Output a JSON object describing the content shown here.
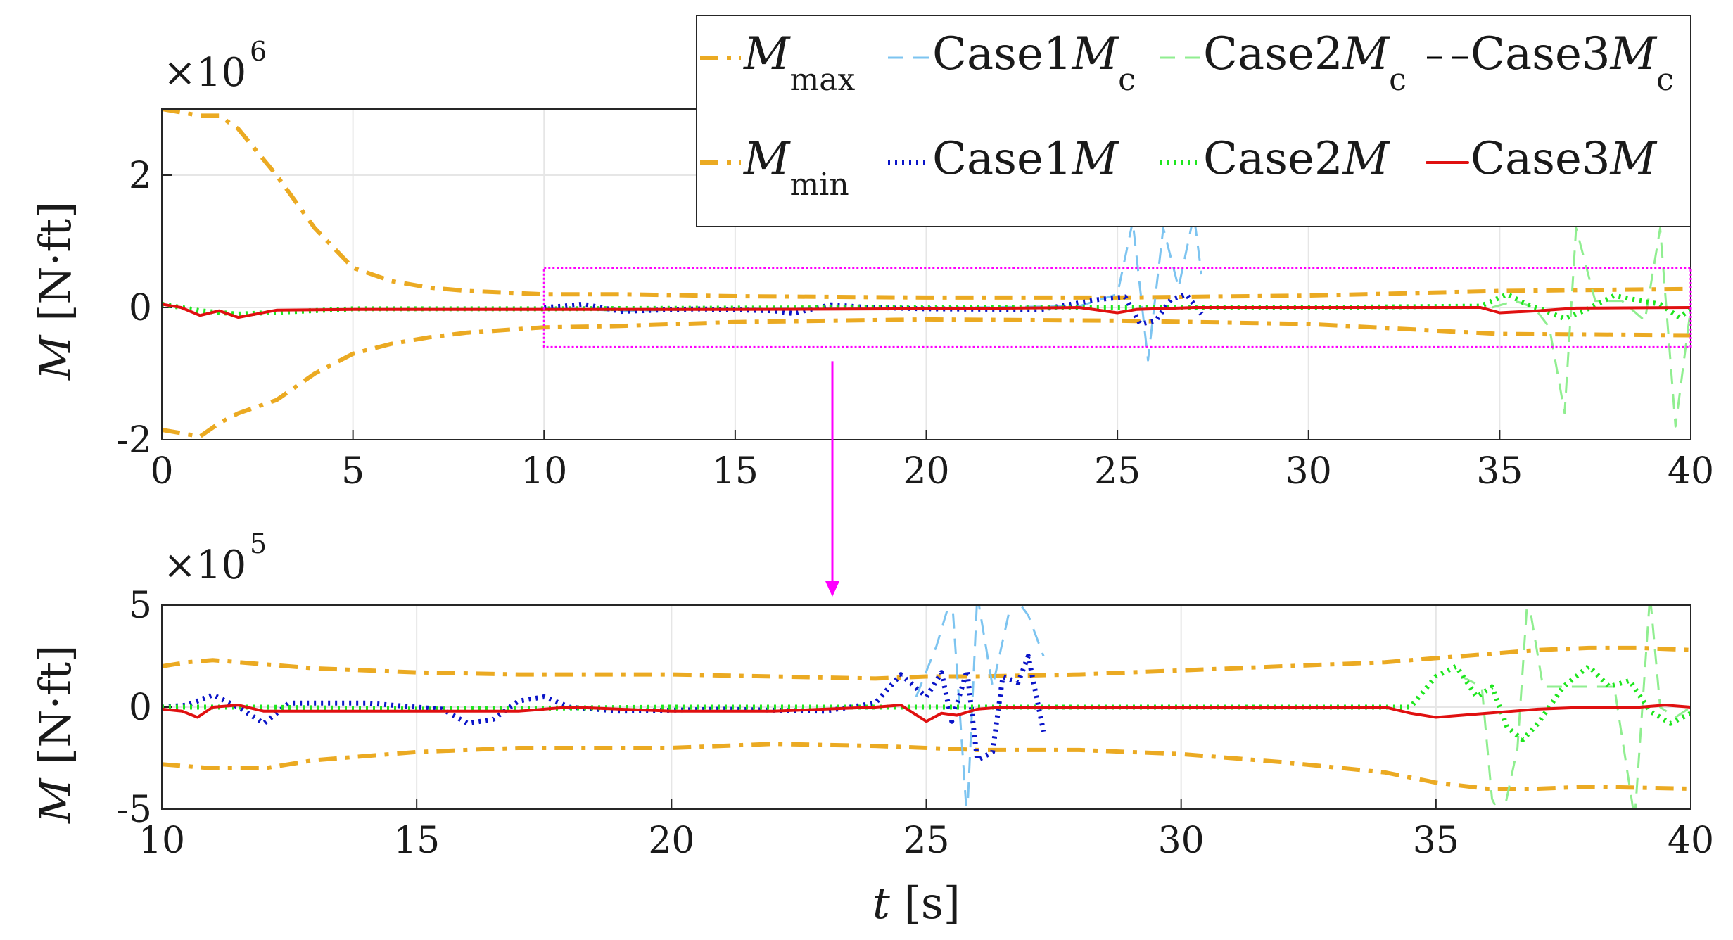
{
  "colors": {
    "mmax": "#EBAA22",
    "mmin": "#EBAA22",
    "case1_mc": "#7DC4F0",
    "case2_mc": "#90EE90",
    "case3_mc": "#000000",
    "case1_m": "#0A14C8",
    "case2_m": "#1EE61E",
    "case3_m": "#E01010",
    "zoom_box": "#FF00FF",
    "grid": "#E6E6E6"
  },
  "legend": {
    "mmax": {
      "sym": "M",
      "sub": "max"
    },
    "case1_mc": {
      "pre": "Case1",
      "sym": "M",
      "sub": "c"
    },
    "case2_mc": {
      "pre": "Case2",
      "sym": "M",
      "sub": "c"
    },
    "case3_mc": {
      "pre": "Case3",
      "sym": "M",
      "sub": "c"
    },
    "mmin": {
      "sym": "M",
      "sub": "min"
    },
    "case1_m": {
      "pre": "Case1",
      "sym": "M"
    },
    "case2_m": {
      "pre": "Case2",
      "sym": "M"
    },
    "case3_m": {
      "pre": "Case3",
      "sym": "M"
    }
  },
  "xlabel": {
    "sym": "t",
    "unit": " [s]"
  },
  "chart_data": [
    {
      "type": "line",
      "title": "",
      "ylabel": {
        "sym": "M",
        "unit": " [N·ft]"
      },
      "exponent": {
        "base": "×10",
        "power": "6"
      },
      "xlim": [
        0,
        40
      ],
      "ylim": [
        -2,
        3
      ],
      "xticks": [
        "0",
        "5",
        "10",
        "15",
        "20",
        "25",
        "30",
        "35",
        "40"
      ],
      "yticks": [
        "-2",
        "0",
        "2"
      ],
      "ytick_values": [
        -2,
        0,
        2
      ],
      "zoom_region": {
        "x": [
          10,
          40
        ],
        "y": [
          -0.6,
          0.6
        ]
      },
      "series": [
        {
          "name": "Mmax",
          "key": "mmax",
          "style": "dashdot",
          "x": [
            0,
            0.5,
            1,
            1.5,
            2,
            3,
            4,
            5,
            6,
            7,
            8,
            10,
            12,
            15,
            20,
            25,
            30,
            35,
            40
          ],
          "y": [
            3.0,
            2.95,
            2.9,
            2.9,
            2.7,
            2.0,
            1.2,
            0.6,
            0.4,
            0.3,
            0.25,
            0.2,
            0.2,
            0.17,
            0.15,
            0.15,
            0.18,
            0.25,
            0.28
          ]
        },
        {
          "name": "Mmin",
          "key": "mmin",
          "style": "dashdot",
          "x": [
            0,
            0.5,
            1,
            1.5,
            2,
            3,
            4,
            5,
            6,
            7,
            8,
            10,
            12,
            15,
            20,
            25,
            30,
            35,
            40
          ],
          "y": [
            -1.85,
            -1.9,
            -1.95,
            -1.75,
            -1.6,
            -1.4,
            -1.0,
            -0.7,
            -0.55,
            -0.45,
            -0.38,
            -0.3,
            -0.28,
            -0.22,
            -0.18,
            -0.2,
            -0.25,
            -0.4,
            -0.42
          ]
        },
        {
          "name": "Case1Mc",
          "key": "case1_mc",
          "style": "dashed",
          "x": [
            10,
            12,
            15,
            20,
            24,
            25,
            25.4,
            25.8,
            26.2,
            26.6,
            27,
            27.2
          ],
          "y": [
            0.0,
            -0.05,
            -0.02,
            -0.01,
            0.02,
            0.2,
            1.3,
            -0.8,
            1.2,
            0.3,
            1.4,
            0.5
          ]
        },
        {
          "name": "Case2Mc",
          "key": "case2_mc",
          "style": "dashed",
          "x": [
            34.8,
            35.4,
            35.9,
            36.3,
            36.7,
            37.0,
            37.5,
            38.2,
            38.8,
            39.2,
            39.6,
            40
          ],
          "y": [
            0.0,
            0.1,
            0.0,
            -0.3,
            -1.6,
            1.2,
            0.1,
            0.1,
            -0.2,
            1.2,
            -1.8,
            0.0
          ]
        },
        {
          "name": "Case1M",
          "key": "case1_m",
          "style": "dotted",
          "x": [
            10,
            10.5,
            11,
            11.5,
            12,
            14,
            16,
            16.5,
            17.5,
            18.5,
            20,
            23,
            24.5,
            25.2,
            25.6,
            26,
            26.4,
            26.8,
            27.2
          ],
          "y": [
            0.0,
            0.02,
            0.05,
            0.0,
            -0.06,
            -0.02,
            -0.05,
            -0.09,
            0.04,
            0.0,
            -0.02,
            -0.03,
            0.12,
            0.16,
            -0.25,
            -0.2,
            0.12,
            0.2,
            -0.1
          ]
        },
        {
          "name": "Case2M",
          "key": "case2_m",
          "style": "dotted",
          "x": [
            0,
            1,
            2,
            5,
            10,
            20,
            30,
            34.5,
            35.2,
            35.7,
            36.2,
            36.7,
            37.2,
            38,
            38.7,
            39.2,
            39.7,
            40
          ],
          "y": [
            0.05,
            -0.05,
            -0.1,
            -0.02,
            -0.02,
            0.0,
            0.0,
            0.02,
            0.2,
            0.05,
            -0.05,
            -0.17,
            -0.05,
            0.18,
            0.1,
            0.05,
            -0.15,
            -0.02
          ]
        },
        {
          "name": "Case3M",
          "key": "case3_m",
          "style": "solid",
          "x": [
            0,
            0.5,
            1,
            1.5,
            2,
            3,
            5,
            10,
            15,
            20,
            24,
            25,
            25.5,
            27,
            30,
            34.5,
            35,
            36,
            37,
            40
          ],
          "y": [
            0.05,
            0.0,
            -0.12,
            -0.05,
            -0.15,
            -0.04,
            -0.03,
            -0.03,
            -0.03,
            -0.02,
            0.0,
            -0.08,
            -0.03,
            0.0,
            0.0,
            0.0,
            -0.08,
            -0.05,
            -0.01,
            0.0
          ]
        }
      ]
    },
    {
      "type": "line",
      "title": "",
      "ylabel": {
        "sym": "M",
        "unit": " [N·ft]"
      },
      "exponent": {
        "base": "×10",
        "power": "5"
      },
      "xlim": [
        10,
        40
      ],
      "ylim": [
        -5,
        5
      ],
      "xticks": [
        "10",
        "15",
        "20",
        "25",
        "30",
        "35",
        "40"
      ],
      "yticks": [
        "-5",
        "0",
        "5"
      ],
      "ytick_values": [
        -5,
        0,
        5
      ],
      "series": [
        {
          "name": "Mmax",
          "key": "mmax",
          "style": "dashdot",
          "x": [
            10,
            10.5,
            11,
            12,
            13,
            15,
            17,
            20,
            22,
            24,
            25,
            26,
            28,
            30,
            32,
            34,
            35,
            36,
            37,
            38,
            39,
            40
          ],
          "y": [
            2.0,
            2.2,
            2.3,
            2.1,
            1.9,
            1.7,
            1.6,
            1.6,
            1.5,
            1.4,
            1.5,
            1.5,
            1.6,
            1.8,
            2.0,
            2.2,
            2.4,
            2.6,
            2.8,
            2.9,
            2.9,
            2.8
          ]
        },
        {
          "name": "Mmin",
          "key": "mmin",
          "style": "dashdot",
          "x": [
            10,
            11,
            12,
            13,
            15,
            17,
            20,
            22,
            24,
            26,
            28,
            30,
            32,
            34,
            35,
            36,
            37,
            38,
            40
          ],
          "y": [
            -2.8,
            -3.0,
            -3.0,
            -2.6,
            -2.2,
            -2.0,
            -2.0,
            -1.8,
            -1.9,
            -2.1,
            -2.1,
            -2.3,
            -2.7,
            -3.2,
            -3.7,
            -4.0,
            -4.0,
            -3.9,
            -4.0
          ]
        },
        {
          "name": "Case1Mc",
          "key": "case1_mc",
          "style": "dashed",
          "x": [
            24.8,
            25.2,
            25.5,
            25.8,
            26.0,
            26.3,
            26.7,
            27.0,
            27.3
          ],
          "y": [
            0.5,
            3.0,
            5.5,
            -5.5,
            5.5,
            1.0,
            5.5,
            4.5,
            2.5
          ]
        },
        {
          "name": "Case2Mc",
          "key": "case2_mc",
          "style": "dashed",
          "x": [
            35.5,
            35.9,
            36.1,
            36.3,
            36.6,
            36.8,
            37.1,
            38.5,
            38.9,
            39.2,
            39.4,
            39.7,
            40
          ],
          "y": [
            1.5,
            1.0,
            -4.5,
            -5.5,
            -2.0,
            5.5,
            1.0,
            1.0,
            -5.5,
            5.5,
            0.0,
            -0.5,
            0.0
          ]
        },
        {
          "name": "Case1M",
          "key": "case1_m",
          "style": "dotted",
          "x": [
            10,
            10.5,
            11,
            11.5,
            12,
            12.5,
            14,
            15.5,
            16,
            16.5,
            17,
            17.5,
            18,
            19,
            21,
            23,
            24,
            24.5,
            25,
            25.3,
            25.5,
            25.8,
            26.0,
            26.3,
            26.5,
            26.8,
            27.0,
            27.3
          ],
          "y": [
            0.0,
            0.1,
            0.6,
            0.0,
            -0.8,
            0.2,
            0.2,
            -0.1,
            -0.8,
            -0.6,
            0.3,
            0.5,
            0.0,
            -0.2,
            -0.1,
            -0.2,
            0.2,
            1.6,
            0.5,
            1.7,
            -0.7,
            1.8,
            -2.6,
            -2.2,
            1.5,
            1.2,
            2.5,
            -1.2
          ]
        },
        {
          "name": "Case2M",
          "key": "case2_m",
          "style": "dotted",
          "x": [
            10,
            12,
            15,
            20,
            25,
            30,
            34.5,
            35.0,
            35.4,
            35.8,
            36.1,
            36.4,
            36.7,
            37.0,
            37.5,
            38.0,
            38.4,
            38.8,
            39.2,
            39.6,
            40
          ],
          "y": [
            0.0,
            0.0,
            -0.1,
            0.0,
            0.0,
            0.0,
            0.0,
            1.5,
            2.0,
            0.5,
            1.0,
            -1.0,
            -1.6,
            -0.8,
            1.0,
            2.0,
            1.0,
            1.3,
            -0.2,
            -0.8,
            -0.3
          ]
        },
        {
          "name": "Case3M",
          "key": "case3_m",
          "style": "solid",
          "x": [
            10,
            10.4,
            10.7,
            11,
            11.5,
            12,
            15,
            17,
            18,
            20,
            22,
            24,
            24.5,
            25,
            25.3,
            25.6,
            26,
            26.5,
            27,
            30,
            34,
            34.5,
            35,
            35.5,
            36,
            37,
            38,
            39,
            39.5,
            40
          ],
          "y": [
            -0.1,
            -0.2,
            -0.5,
            0.0,
            0.1,
            -0.2,
            -0.2,
            -0.2,
            0.0,
            -0.2,
            -0.2,
            0.0,
            0.1,
            -0.7,
            -0.3,
            -0.4,
            -0.1,
            0.0,
            0.0,
            0.0,
            0.0,
            -0.3,
            -0.5,
            -0.4,
            -0.3,
            -0.1,
            0.0,
            0.0,
            0.1,
            0.0
          ]
        }
      ]
    }
  ]
}
